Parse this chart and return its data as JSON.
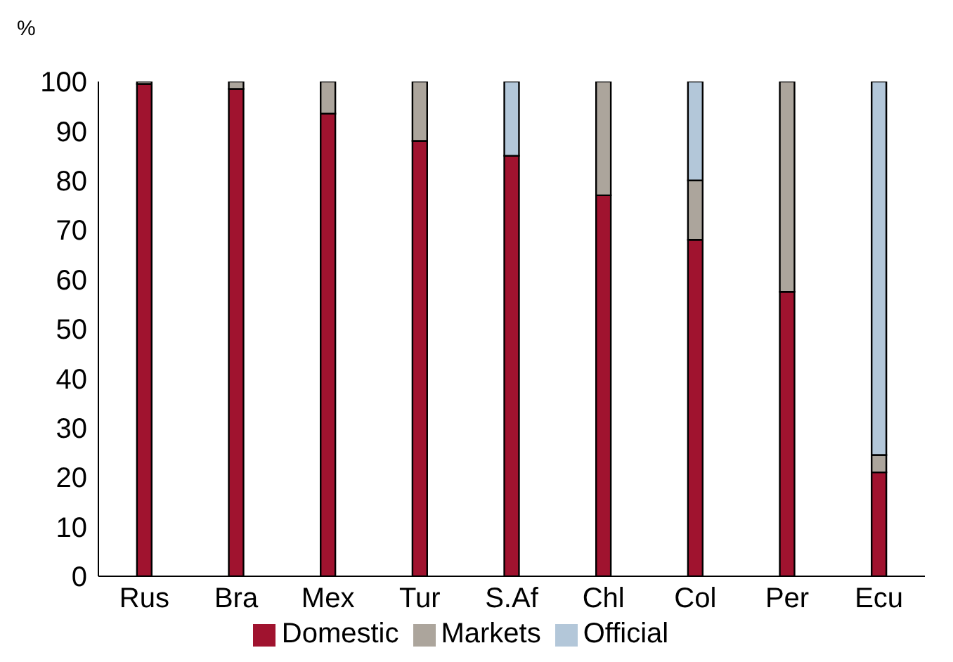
{
  "chart_data": {
    "type": "bar",
    "stacked": true,
    "ylabel": "%",
    "categories": [
      "Rus",
      "Bra",
      "Mex",
      "Tur",
      "S.Af",
      "Chl",
      "Col",
      "Per",
      "Ecu"
    ],
    "series": [
      {
        "name": "Domestic",
        "color": "#a0132f",
        "values": [
          99.5,
          98.5,
          93.5,
          88,
          85,
          77,
          68,
          57.5,
          21
        ]
      },
      {
        "name": "Markets",
        "color": "#aca59c",
        "values": [
          0.5,
          1.5,
          6.5,
          12,
          0,
          23,
          12,
          42.5,
          3.5
        ]
      },
      {
        "name": "Official",
        "color": "#b3c7d9",
        "values": [
          0,
          0,
          0,
          0,
          15,
          0,
          20,
          0,
          75.5
        ]
      }
    ],
    "ylim": [
      0,
      100
    ],
    "yticks": [
      0,
      10,
      20,
      30,
      40,
      50,
      60,
      70,
      80,
      90,
      100
    ],
    "grid": false,
    "legend": "bottom"
  }
}
